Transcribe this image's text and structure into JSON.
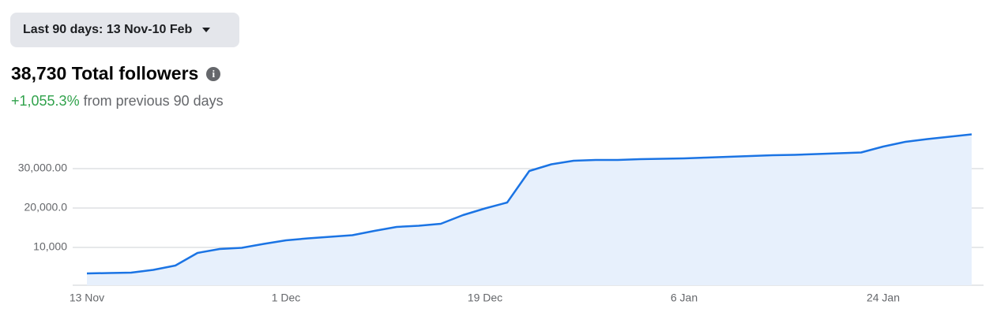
{
  "header": {
    "date_range": "Last 90 days: 13 Nov-10 Feb",
    "title": "38,730 Total followers",
    "change": "+1,055.3%",
    "change_text": "from previous 90 days"
  },
  "chart_data": {
    "type": "area",
    "color": "#1b74e4",
    "fill": "#e7f0fc",
    "x": [
      "13 Nov",
      "15 Nov",
      "17 Nov",
      "19 Nov",
      "21 Nov",
      "23 Nov",
      "25 Nov",
      "27 Nov",
      "29 Nov",
      "1 Dec",
      "3 Dec",
      "5 Dec",
      "7 Dec",
      "9 Dec",
      "11 Dec",
      "13 Dec",
      "15 Dec",
      "17 Dec",
      "19 Dec",
      "21 Dec",
      "23 Dec",
      "25 Dec",
      "27 Dec",
      "29 Dec",
      "31 Dec",
      "2 Jan",
      "4 Jan",
      "6 Jan",
      "8 Jan",
      "10 Jan",
      "12 Jan",
      "14 Jan",
      "16 Jan",
      "18 Jan",
      "20 Jan",
      "22 Jan",
      "24 Jan",
      "26 Jan",
      "28 Jan",
      "30 Jan",
      "1 Feb"
    ],
    "x_label_interval": 9,
    "values": [
      3400,
      3500,
      3600,
      4300,
      5400,
      8600,
      9600,
      9900,
      10900,
      11800,
      12300,
      12700,
      13100,
      14200,
      15200,
      15500,
      16000,
      18200,
      19900,
      21400,
      29400,
      31100,
      32000,
      32200,
      32200,
      32400,
      32500,
      32600,
      32800,
      33000,
      33200,
      33400,
      33500,
      33700,
      33900,
      34100,
      35600,
      36800,
      37500,
      38100,
      38700
    ],
    "ylim": [
      0,
      40000
    ],
    "yticks": [
      {
        "value": 10000,
        "label": "10,000"
      },
      {
        "value": 20000,
        "label": "20,000.0"
      },
      {
        "value": 30000,
        "label": "30,000.00"
      }
    ],
    "grid": true
  }
}
